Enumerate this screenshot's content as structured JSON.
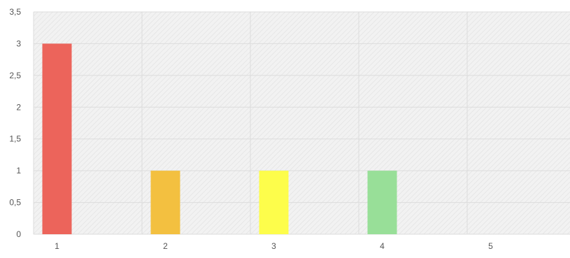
{
  "chart_data": {
    "type": "bar",
    "categories": [
      "1",
      "2",
      "3",
      "4",
      "5"
    ],
    "values": [
      3,
      1,
      1,
      1,
      0
    ],
    "bar_colors": [
      "#ec645b",
      "#f3c040",
      "#fdfd4b",
      "#98df98",
      "#d7e8f4"
    ],
    "y_ticks": [
      "0",
      "0,5",
      "1",
      "1,5",
      "2",
      "2,5",
      "3",
      "3,5"
    ],
    "y_tick_values": [
      0,
      0.5,
      1,
      1.5,
      2,
      2.5,
      3,
      3.5
    ],
    "ylim": [
      0,
      3.5
    ],
    "grid": true,
    "background": "hatched light gray",
    "title": "",
    "xlabel": "",
    "ylabel": ""
  }
}
